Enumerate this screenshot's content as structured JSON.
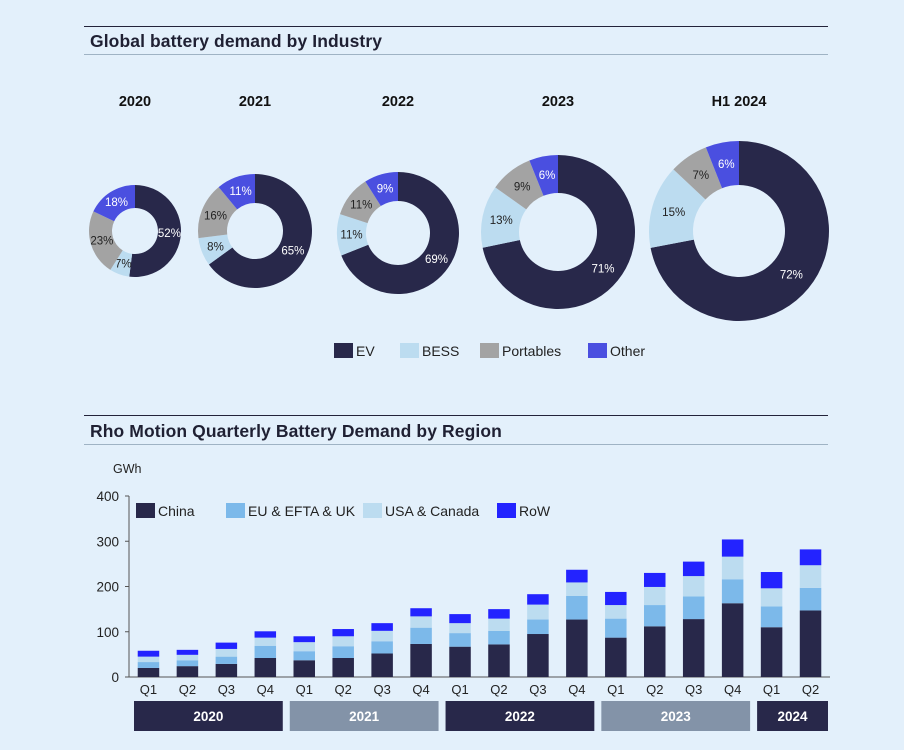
{
  "colors": {
    "EV": "#28284a",
    "BESS": "#bcdcf0",
    "Portables": "#a3a3a3",
    "Other": "#4a4fe0",
    "China": "#28284a",
    "EU & EFTA & UK": "#7cb9ea",
    "USA & Canada": "#bcdcf0",
    "RoW": "#2323ff",
    "year_dark": "#28284a",
    "year_light": "#8393a8"
  },
  "top": {
    "title": "Global battery demand by Industry"
  },
  "bottom": {
    "title": "Rho Motion Quarterly Battery Demand by Region",
    "unit": "GWh"
  },
  "chart_data": [
    {
      "type": "pie",
      "variant": "donut",
      "title": "Global battery demand by Industry",
      "legend": [
        "EV",
        "BESS",
        "Portables",
        "Other"
      ],
      "legend_position": "bottom-center",
      "donuts": [
        {
          "label": "2020",
          "values": {
            "EV": 52,
            "BESS": 7,
            "Portables": 23,
            "Other": 18
          }
        },
        {
          "label": "2021",
          "values": {
            "EV": 65,
            "BESS": 8,
            "Portables": 16,
            "Other": 11
          }
        },
        {
          "label": "2022",
          "values": {
            "EV": 69,
            "BESS": 11,
            "Portables": 11,
            "Other": 9
          }
        },
        {
          "label": "2023",
          "values": {
            "EV": 71,
            "BESS": 13,
            "Portables": 9,
            "Other": 6
          }
        },
        {
          "label": "H1 2024",
          "values": {
            "EV": 72,
            "BESS": 15,
            "Portables": 7,
            "Other": 6
          }
        }
      ]
    },
    {
      "type": "bar",
      "stacked": true,
      "title": "Rho Motion Quarterly Battery Demand by Region",
      "ylabel": "GWh",
      "ylim": [
        0,
        400
      ],
      "yticks": [
        0,
        100,
        200,
        300,
        400
      ],
      "grid": false,
      "legend_position": "top-left",
      "categories": [
        "Q1",
        "Q2",
        "Q3",
        "Q4",
        "Q1",
        "Q2",
        "Q3",
        "Q4",
        "Q1",
        "Q2",
        "Q3",
        "Q4",
        "Q1",
        "Q2",
        "Q3",
        "Q4",
        "Q1",
        "Q2"
      ],
      "year_groups": [
        {
          "label": "2020",
          "span": 4,
          "style": "dark"
        },
        {
          "label": "2021",
          "span": 4,
          "style": "light"
        },
        {
          "label": "2022",
          "span": 4,
          "style": "dark"
        },
        {
          "label": "2023",
          "span": 4,
          "style": "light"
        },
        {
          "label": "2024",
          "span": 2,
          "style": "dark"
        }
      ],
      "series": [
        {
          "name": "China",
          "values": [
            20,
            24,
            29,
            42,
            37,
            42,
            52,
            73,
            67,
            72,
            95,
            127,
            87,
            112,
            128,
            163,
            110,
            147
          ]
        },
        {
          "name": "EU & EFTA & UK",
          "values": [
            13,
            13,
            16,
            27,
            20,
            26,
            27,
            36,
            30,
            30,
            32,
            52,
            42,
            47,
            50,
            53,
            46,
            50
          ]
        },
        {
          "name": "USA & Canada",
          "values": [
            12,
            12,
            17,
            18,
            20,
            22,
            23,
            25,
            22,
            27,
            33,
            30,
            30,
            40,
            45,
            50,
            40,
            50
          ]
        },
        {
          "name": "RoW",
          "values": [
            13,
            11,
            14,
            14,
            13,
            16,
            17,
            18,
            20,
            21,
            23,
            28,
            29,
            31,
            32,
            38,
            36,
            35
          ]
        }
      ]
    }
  ]
}
